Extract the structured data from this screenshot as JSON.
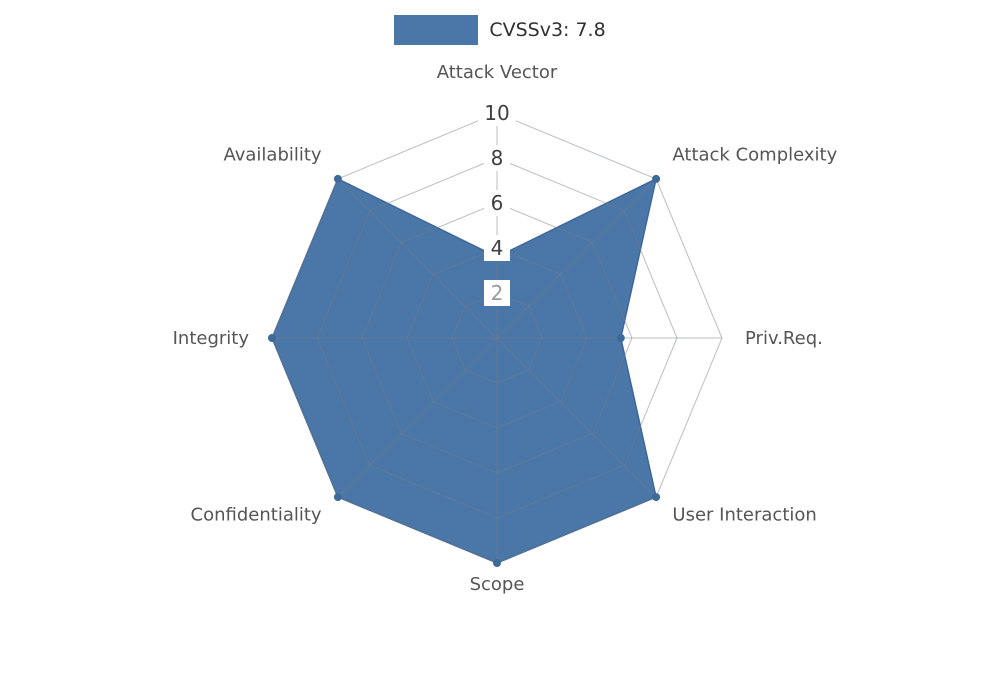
{
  "legend": {
    "label": "CVSSv3: 7.8",
    "color": "#4a76a8"
  },
  "chart_data": {
    "type": "radar",
    "title": "CVSSv3: 7.8",
    "categories": [
      "Attack Vector",
      "Attack Complexity",
      "Priv.Req.",
      "User Interaction",
      "Scope",
      "Confidentiality",
      "Integrity",
      "Availability"
    ],
    "series": [
      {
        "name": "CVSSv3: 7.8",
        "color": "#4a76a8",
        "values": [
          3.6,
          10,
          5.5,
          10,
          10,
          10,
          10,
          10
        ]
      }
    ],
    "radial_axis": {
      "min": 0,
      "max": 10,
      "ticks": [
        2,
        4,
        6,
        8,
        10
      ],
      "tick_colors": {
        "2": "#9a9a9a",
        "default": "#404040"
      }
    },
    "grid": true,
    "legend_position": "top",
    "style": {
      "grid_color": "rgba(120,125,135,0.5)",
      "axis_label_color": "#555555",
      "marker_color": "#3c6a99",
      "series_edge_color": "#3f689a",
      "tick_box_color": "#ffffff"
    }
  }
}
